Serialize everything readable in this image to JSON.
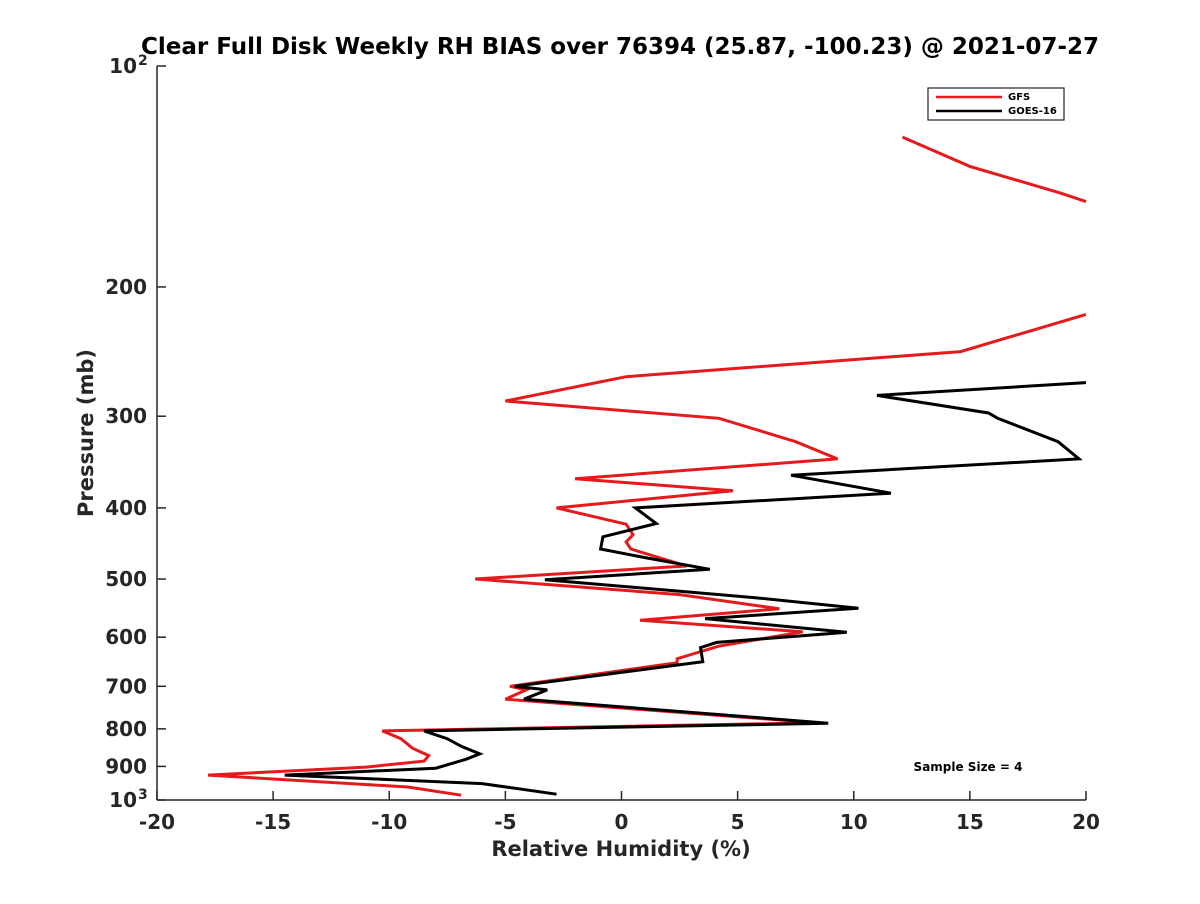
{
  "chart_data": {
    "type": "line",
    "title": "Clear Full Disk Weekly RH BIAS over 76394 (25.87, -100.23) @ 2021-07-27",
    "xlabel": "Relative Humidity (%)",
    "ylabel": "Pressure (mb)",
    "xlim": [
      -20,
      20
    ],
    "ylim": [
      100,
      1000
    ],
    "y_scale": "log",
    "y_reversed": true,
    "x_ticks": [
      "-20",
      "-15",
      "-10",
      "-5",
      "0",
      "5",
      "10",
      "15",
      "20"
    ],
    "y_ticks": [
      {
        "value": 100,
        "base": "10",
        "exp": "2"
      },
      {
        "value": 200,
        "label": "200"
      },
      {
        "value": 300,
        "label": "300"
      },
      {
        "value": 400,
        "label": "400"
      },
      {
        "value": 500,
        "label": "500"
      },
      {
        "value": 600,
        "label": "600"
      },
      {
        "value": 700,
        "label": "700"
      },
      {
        "value": 800,
        "label": "800"
      },
      {
        "value": 900,
        "label": "900"
      },
      {
        "value": 1000,
        "base": "10",
        "exp": "3"
      }
    ],
    "grid": false,
    "legend_position": "top-right",
    "annotation": "Sample Size = 4",
    "series": [
      {
        "name": "GFS",
        "color": "#e41a1c",
        "segments": [
          [
            [
              12.1,
              125
            ],
            [
              15.0,
              137
            ],
            [
              18.9,
              149
            ],
            [
              20.0,
              153
            ]
          ],
          [
            [
              20.0,
              218
            ],
            [
              14.6,
              245
            ],
            [
              0.2,
              265
            ],
            [
              -5.0,
              286
            ],
            [
              4.2,
              302
            ],
            [
              7.5,
              325
            ],
            [
              9.3,
              343
            ],
            [
              -2.0,
              365
            ],
            [
              4.8,
              379
            ],
            [
              -2.8,
              400
            ],
            [
              0.2,
              421
            ],
            [
              0.5,
              435
            ],
            [
              0.2,
              445
            ],
            [
              0.4,
              455
            ],
            [
              2.8,
              480
            ],
            [
              -6.3,
              500
            ],
            [
              2.5,
              525
            ],
            [
              6.8,
              549
            ],
            [
              0.8,
              569
            ],
            [
              7.8,
              590
            ],
            [
              4.2,
              617
            ],
            [
              2.4,
              642
            ],
            [
              2.4,
              650
            ],
            [
              -4.8,
              700
            ],
            [
              -4.1,
              708
            ],
            [
              -5.0,
              729
            ],
            [
              8.4,
              785
            ],
            [
              -10.3,
              805
            ],
            [
              -9.5,
              825
            ],
            [
              -9.0,
              850
            ],
            [
              -8.3,
              870
            ],
            [
              -8.5,
              885
            ],
            [
              -11.0,
              902
            ],
            [
              -17.8,
              925
            ],
            [
              -9.2,
              960
            ],
            [
              -6.9,
              985
            ]
          ]
        ]
      },
      {
        "name": "GOES-16",
        "color": "#000000",
        "segments": [
          [
            [
              20.0,
              270
            ],
            [
              11.0,
              281
            ],
            [
              15.8,
              297
            ],
            [
              16.2,
              302
            ],
            [
              18.8,
              325
            ],
            [
              19.7,
              343
            ],
            [
              7.3,
              361
            ],
            [
              11.6,
              382
            ],
            [
              0.6,
              400
            ],
            [
              1.5,
              420
            ],
            [
              -0.8,
              438
            ],
            [
              -0.9,
              455
            ],
            [
              1.1,
              468
            ],
            [
              3.8,
              485
            ],
            [
              -3.3,
              501
            ],
            [
              5.7,
              530
            ],
            [
              10.2,
              548
            ],
            [
              3.6,
              566
            ],
            [
              9.7,
              591
            ],
            [
              4.1,
              610
            ],
            [
              3.4,
              620
            ],
            [
              3.5,
              648
            ],
            [
              -4.6,
              700
            ],
            [
              -3.2,
              708
            ],
            [
              -4.2,
              729
            ],
            [
              8.9,
              786
            ],
            [
              -8.5,
              805
            ],
            [
              -7.5,
              825
            ],
            [
              -6.9,
              845
            ],
            [
              -6.1,
              865
            ],
            [
              -6.7,
              880
            ],
            [
              -8.0,
              905
            ],
            [
              -14.5,
              925
            ],
            [
              -6.0,
              950
            ],
            [
              -2.8,
              982
            ]
          ]
        ]
      }
    ]
  }
}
